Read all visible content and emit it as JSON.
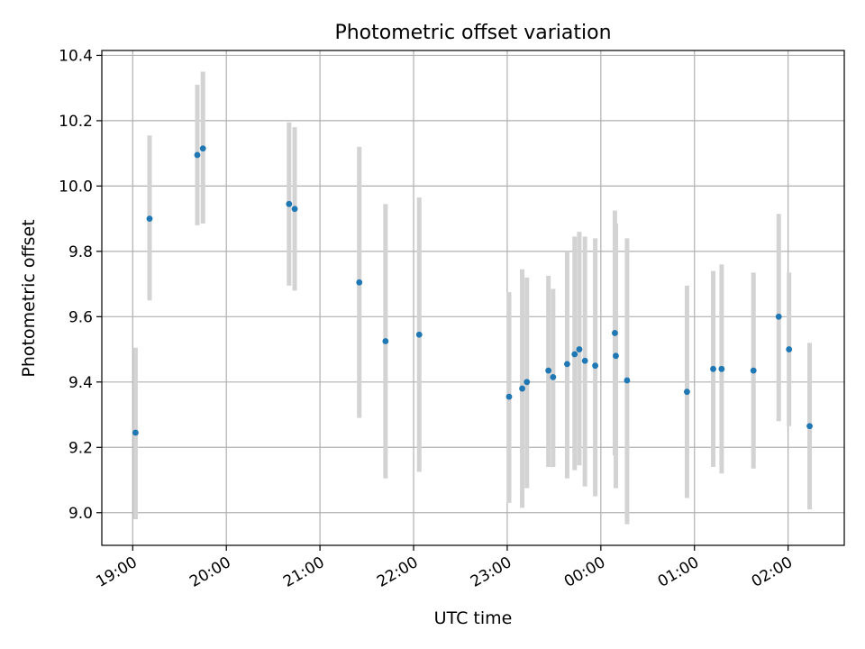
{
  "chart_data": {
    "type": "scatter",
    "title": "Photometric offset variation",
    "xlabel": "UTC time",
    "ylabel": "Photometric offset",
    "x_unit": "hours after 19:00 UTC",
    "xlim": [
      -0.33,
      7.6
    ],
    "ylim": [
      8.9,
      10.415
    ],
    "x_ticks": [
      {
        "value": 0,
        "label": "19:00"
      },
      {
        "value": 1,
        "label": "20:00"
      },
      {
        "value": 2,
        "label": "21:00"
      },
      {
        "value": 3,
        "label": "22:00"
      },
      {
        "value": 4,
        "label": "23:00"
      },
      {
        "value": 5,
        "label": "00:00"
      },
      {
        "value": 6,
        "label": "01:00"
      },
      {
        "value": 7,
        "label": "02:00"
      }
    ],
    "y_ticks": [
      {
        "value": 9.0,
        "label": "9.0"
      },
      {
        "value": 9.2,
        "label": "9.2"
      },
      {
        "value": 9.4,
        "label": "9.4"
      },
      {
        "value": 9.6,
        "label": "9.6"
      },
      {
        "value": 9.8,
        "label": "9.8"
      },
      {
        "value": 10.0,
        "label": "10.0"
      },
      {
        "value": 10.2,
        "label": "10.2"
      },
      {
        "value": 10.4,
        "label": "10.4"
      }
    ],
    "grid": true,
    "colors": {
      "points": "#1f77b4",
      "errorbars": "#d3d3d3",
      "grid": "#b0b0b0"
    },
    "points": [
      {
        "x": 0.03,
        "y": 9.245,
        "lo": 8.98,
        "hi": 9.505
      },
      {
        "x": 0.18,
        "y": 9.9,
        "lo": 9.65,
        "hi": 10.155
      },
      {
        "x": 0.69,
        "y": 10.095,
        "lo": 9.88,
        "hi": 10.31
      },
      {
        "x": 0.75,
        "y": 10.115,
        "lo": 9.885,
        "hi": 10.35
      },
      {
        "x": 1.67,
        "y": 9.945,
        "lo": 9.695,
        "hi": 10.195
      },
      {
        "x": 1.73,
        "y": 9.93,
        "lo": 9.68,
        "hi": 10.18
      },
      {
        "x": 2.42,
        "y": 9.705,
        "lo": 9.29,
        "hi": 10.12
      },
      {
        "x": 2.7,
        "y": 9.525,
        "lo": 9.105,
        "hi": 9.945
      },
      {
        "x": 3.06,
        "y": 9.545,
        "lo": 9.125,
        "hi": 9.965
      },
      {
        "x": 4.02,
        "y": 9.355,
        "lo": 9.03,
        "hi": 9.675
      },
      {
        "x": 4.16,
        "y": 9.38,
        "lo": 9.015,
        "hi": 9.745
      },
      {
        "x": 4.21,
        "y": 9.4,
        "lo": 9.075,
        "hi": 9.72
      },
      {
        "x": 4.44,
        "y": 9.435,
        "lo": 9.14,
        "hi": 9.725
      },
      {
        "x": 4.49,
        "y": 9.415,
        "lo": 9.14,
        "hi": 9.685
      },
      {
        "x": 4.64,
        "y": 9.455,
        "lo": 9.105,
        "hi": 9.8
      },
      {
        "x": 4.72,
        "y": 9.485,
        "lo": 9.13,
        "hi": 9.845
      },
      {
        "x": 4.77,
        "y": 9.5,
        "lo": 9.145,
        "hi": 9.86
      },
      {
        "x": 4.83,
        "y": 9.465,
        "lo": 9.08,
        "hi": 9.845
      },
      {
        "x": 4.94,
        "y": 9.45,
        "lo": 9.05,
        "hi": 9.84
      },
      {
        "x": 5.15,
        "y": 9.55,
        "lo": 9.175,
        "hi": 9.925
      },
      {
        "x": 5.16,
        "y": 9.48,
        "lo": 9.075,
        "hi": 9.885
      },
      {
        "x": 5.28,
        "y": 9.405,
        "lo": 8.965,
        "hi": 9.84
      },
      {
        "x": 5.92,
        "y": 9.37,
        "lo": 9.045,
        "hi": 9.695
      },
      {
        "x": 6.2,
        "y": 9.44,
        "lo": 9.14,
        "hi": 9.74
      },
      {
        "x": 6.29,
        "y": 9.44,
        "lo": 9.12,
        "hi": 9.76
      },
      {
        "x": 6.63,
        "y": 9.435,
        "lo": 9.135,
        "hi": 9.735
      },
      {
        "x": 6.9,
        "y": 9.6,
        "lo": 9.28,
        "hi": 9.915
      },
      {
        "x": 7.01,
        "y": 9.5,
        "lo": 9.265,
        "hi": 9.735
      },
      {
        "x": 7.23,
        "y": 9.265,
        "lo": 9.01,
        "hi": 9.52
      }
    ]
  }
}
